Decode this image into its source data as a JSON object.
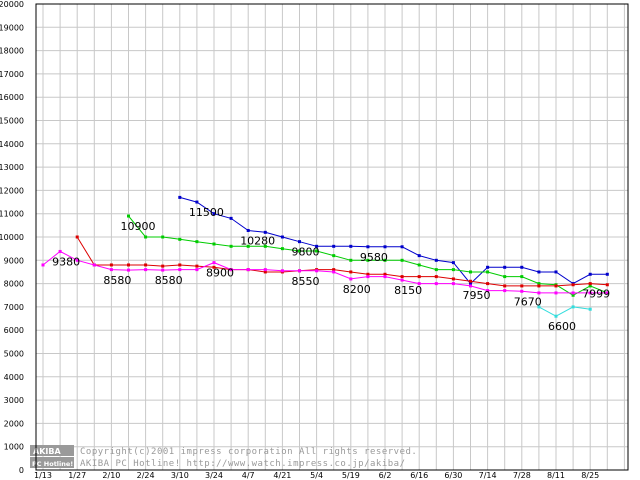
{
  "chart_data": {
    "type": "line",
    "ylim": [
      0,
      20000
    ],
    "yticks": [
      0,
      1000,
      2000,
      3000,
      4000,
      5000,
      6000,
      7000,
      8000,
      9000,
      10000,
      11000,
      12000,
      13000,
      14000,
      15000,
      16000,
      17000,
      18000,
      19000,
      20000
    ],
    "xtick_labels": [
      "1/13",
      "1/27",
      "2/10",
      "2/24",
      "3/10",
      "3/24",
      "4/7",
      "4/21",
      "5/4",
      "5/19",
      "6/2",
      "6/16",
      "6/30",
      "7/14",
      "7/28",
      "8/11",
      "8/25"
    ],
    "grid": true,
    "series": [
      {
        "color": "#0000cc",
        "points": [
          [
            8,
            11700
          ],
          [
            9,
            11500
          ],
          [
            10,
            11000
          ],
          [
            11,
            10800
          ],
          [
            12,
            10280
          ],
          [
            13,
            10200
          ],
          [
            14,
            10000
          ],
          [
            15,
            9800
          ],
          [
            16,
            9600
          ],
          [
            17,
            9600
          ],
          [
            18,
            9600
          ],
          [
            19,
            9580
          ],
          [
            20,
            9580
          ],
          [
            21,
            9580
          ],
          [
            22,
            9200
          ],
          [
            23,
            9000
          ],
          [
            24,
            8900
          ],
          [
            25,
            8000
          ],
          [
            26,
            8700
          ],
          [
            27,
            8700
          ],
          [
            28,
            8700
          ],
          [
            29,
            8500
          ],
          [
            30,
            8500
          ],
          [
            31,
            8000
          ],
          [
            32,
            8400
          ],
          [
            33,
            8400
          ]
        ]
      },
      {
        "color": "#00cc00",
        "points": [
          [
            5,
            10900
          ],
          [
            6,
            10000
          ],
          [
            7,
            10000
          ],
          [
            8,
            9900
          ],
          [
            9,
            9800
          ],
          [
            10,
            9700
          ],
          [
            11,
            9600
          ],
          [
            12,
            9600
          ],
          [
            13,
            9600
          ],
          [
            14,
            9500
          ],
          [
            15,
            9400
          ],
          [
            16,
            9400
          ],
          [
            17,
            9200
          ],
          [
            18,
            9000
          ],
          [
            19,
            9000
          ],
          [
            20,
            9000
          ],
          [
            21,
            9000
          ],
          [
            22,
            8800
          ],
          [
            23,
            8600
          ],
          [
            24,
            8600
          ],
          [
            25,
            8500
          ],
          [
            26,
            8500
          ],
          [
            27,
            8300
          ],
          [
            28,
            8300
          ],
          [
            29,
            8000
          ],
          [
            30,
            7950
          ],
          [
            31,
            7500
          ],
          [
            32,
            7900
          ],
          [
            33,
            7600
          ]
        ]
      },
      {
        "color": "#dd0000",
        "points": [
          [
            2,
            10000
          ],
          [
            3,
            8800
          ],
          [
            4,
            8800
          ],
          [
            5,
            8800
          ],
          [
            6,
            8800
          ],
          [
            7,
            8750
          ],
          [
            8,
            8800
          ],
          [
            9,
            8750
          ],
          [
            10,
            8700
          ],
          [
            11,
            8600
          ],
          [
            12,
            8600
          ],
          [
            13,
            8500
          ],
          [
            14,
            8500
          ],
          [
            15,
            8550
          ],
          [
            16,
            8600
          ],
          [
            17,
            8600
          ],
          [
            18,
            8500
          ],
          [
            19,
            8400
          ],
          [
            20,
            8400
          ],
          [
            21,
            8300
          ],
          [
            22,
            8300
          ],
          [
            23,
            8300
          ],
          [
            24,
            8200
          ],
          [
            25,
            8100
          ],
          [
            26,
            8000
          ],
          [
            27,
            7900
          ],
          [
            28,
            7900
          ],
          [
            29,
            7900
          ],
          [
            30,
            7900
          ],
          [
            31,
            7950
          ],
          [
            32,
            7999
          ],
          [
            33,
            7950
          ]
        ]
      },
      {
        "color": "#ff00ff",
        "points": [
          [
            0,
            8800
          ],
          [
            1,
            9380
          ],
          [
            2,
            9000
          ],
          [
            3,
            8800
          ],
          [
            4,
            8600
          ],
          [
            5,
            8580
          ],
          [
            6,
            8600
          ],
          [
            7,
            8580
          ],
          [
            8,
            8600
          ],
          [
            9,
            8600
          ],
          [
            10,
            8900
          ],
          [
            11,
            8600
          ],
          [
            12,
            8600
          ],
          [
            13,
            8600
          ],
          [
            14,
            8550
          ],
          [
            15,
            8550
          ],
          [
            16,
            8550
          ],
          [
            17,
            8500
          ],
          [
            18,
            8200
          ],
          [
            19,
            8300
          ],
          [
            20,
            8300
          ],
          [
            21,
            8150
          ],
          [
            22,
            8000
          ],
          [
            23,
            8000
          ],
          [
            24,
            8000
          ],
          [
            25,
            7900
          ],
          [
            26,
            7700
          ],
          [
            27,
            7700
          ],
          [
            28,
            7670
          ],
          [
            29,
            7600
          ],
          [
            30,
            7600
          ],
          [
            31,
            7600
          ],
          [
            32,
            7600
          ],
          [
            33,
            7600
          ]
        ]
      },
      {
        "color": "#33dddd",
        "points": [
          [
            29,
            7000
          ],
          [
            30,
            6600
          ],
          [
            31,
            7000
          ],
          [
            32,
            6900
          ]
        ]
      }
    ],
    "data_labels": [
      {
        "text": "9380",
        "x": 1,
        "y": 9380
      },
      {
        "text": "8580",
        "x": 4,
        "y": 8580
      },
      {
        "text": "10900",
        "x": 5,
        "y": 10900
      },
      {
        "text": "8580",
        "x": 7,
        "y": 8580
      },
      {
        "text": "11500",
        "x": 9,
        "y": 11500
      },
      {
        "text": "8900",
        "x": 10,
        "y": 8900
      },
      {
        "text": "10280",
        "x": 12,
        "y": 10280
      },
      {
        "text": "9800",
        "x": 15,
        "y": 9800
      },
      {
        "text": "8550",
        "x": 15,
        "y": 8550
      },
      {
        "text": "9580",
        "x": 19,
        "y": 9580
      },
      {
        "text": "8200",
        "x": 18,
        "y": 8200
      },
      {
        "text": "8150",
        "x": 21,
        "y": 8150
      },
      {
        "text": "7950",
        "x": 25,
        "y": 7950
      },
      {
        "text": "7670",
        "x": 28,
        "y": 7670
      },
      {
        "text": "6600",
        "x": 30,
        "y": 6600
      },
      {
        "text": "7999",
        "x": 32,
        "y": 7999
      }
    ]
  },
  "watermark": {
    "logo_top": "AKIBA",
    "logo_bottom": "PC Hotline!",
    "line1": "Copyright(c)2001 impress corporation All rights reserved.",
    "line2": "AKIBA PC Hotline!  http://www.watch.impress.co.jp/akiba/"
  }
}
